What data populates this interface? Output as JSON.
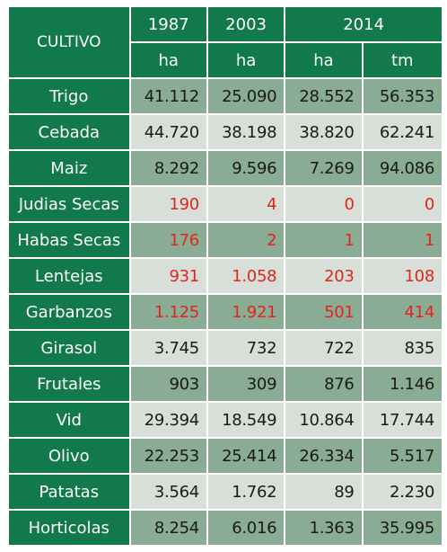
{
  "header": {
    "corner": "CULTIVO",
    "years": [
      "1987",
      "2003",
      "2014"
    ],
    "units": [
      "ha",
      "ha",
      "ha",
      "tm"
    ]
  },
  "rows": [
    {
      "label": "Trigo",
      "values": [
        "41.112",
        "25.090",
        "28.552",
        "56.353"
      ],
      "shade": "dark",
      "red": [
        false,
        false,
        false,
        false
      ]
    },
    {
      "label": "Cebada",
      "values": [
        "44.720",
        "38.198",
        "38.820",
        "62.241"
      ],
      "shade": "light",
      "red": [
        false,
        false,
        false,
        false
      ]
    },
    {
      "label": "Maiz",
      "values": [
        "8.292",
        "9.596",
        "7.269",
        "94.086"
      ],
      "shade": "dark",
      "red": [
        false,
        false,
        false,
        false
      ]
    },
    {
      "label": "Judias Secas",
      "values": [
        "190",
        "4",
        "0",
        "0"
      ],
      "shade": "light",
      "red": [
        true,
        true,
        true,
        true
      ]
    },
    {
      "label": "Habas Secas",
      "values": [
        "176",
        "2",
        "1",
        "1"
      ],
      "shade": "dark",
      "red": [
        true,
        true,
        true,
        true
      ]
    },
    {
      "label": "Lentejas",
      "values": [
        "931",
        "1.058",
        "203",
        "108"
      ],
      "shade": "light",
      "red": [
        true,
        true,
        true,
        true
      ]
    },
    {
      "label": "Garbanzos",
      "values": [
        "1.125",
        "1.921",
        "501",
        "414"
      ],
      "shade": "dark",
      "red": [
        true,
        true,
        true,
        true
      ]
    },
    {
      "label": "Girasol",
      "values": [
        "3.745",
        "732",
        "722",
        "835"
      ],
      "shade": "light",
      "red": [
        false,
        false,
        false,
        false
      ]
    },
    {
      "label": "Frutales",
      "values": [
        "903",
        "309",
        "876",
        "1.146"
      ],
      "shade": "dark",
      "red": [
        false,
        false,
        false,
        false
      ]
    },
    {
      "label": "Vid",
      "values": [
        "29.394",
        "18.549",
        "10.864",
        "17.744"
      ],
      "shade": "light",
      "red": [
        false,
        false,
        false,
        false
      ]
    },
    {
      "label": "Olivo",
      "values": [
        "22.253",
        "25.414",
        "26.334",
        "5.517"
      ],
      "shade": "dark",
      "red": [
        false,
        false,
        false,
        false
      ]
    },
    {
      "label": "Patatas",
      "values": [
        "3.564",
        "1.762",
        "89",
        "2.230"
      ],
      "shade": "light",
      "red": [
        false,
        false,
        false,
        false
      ]
    },
    {
      "label": "Horticolas",
      "values": [
        "8.254",
        "6.016",
        "1.363",
        "35.995"
      ],
      "shade": "dark",
      "red": [
        false,
        false,
        false,
        false
      ]
    }
  ],
  "colors": {
    "header_green": "#127a4a",
    "dark_cell": "#8aab94",
    "light_cell": "#d8dfd9",
    "red_value": "#e0261c"
  }
}
